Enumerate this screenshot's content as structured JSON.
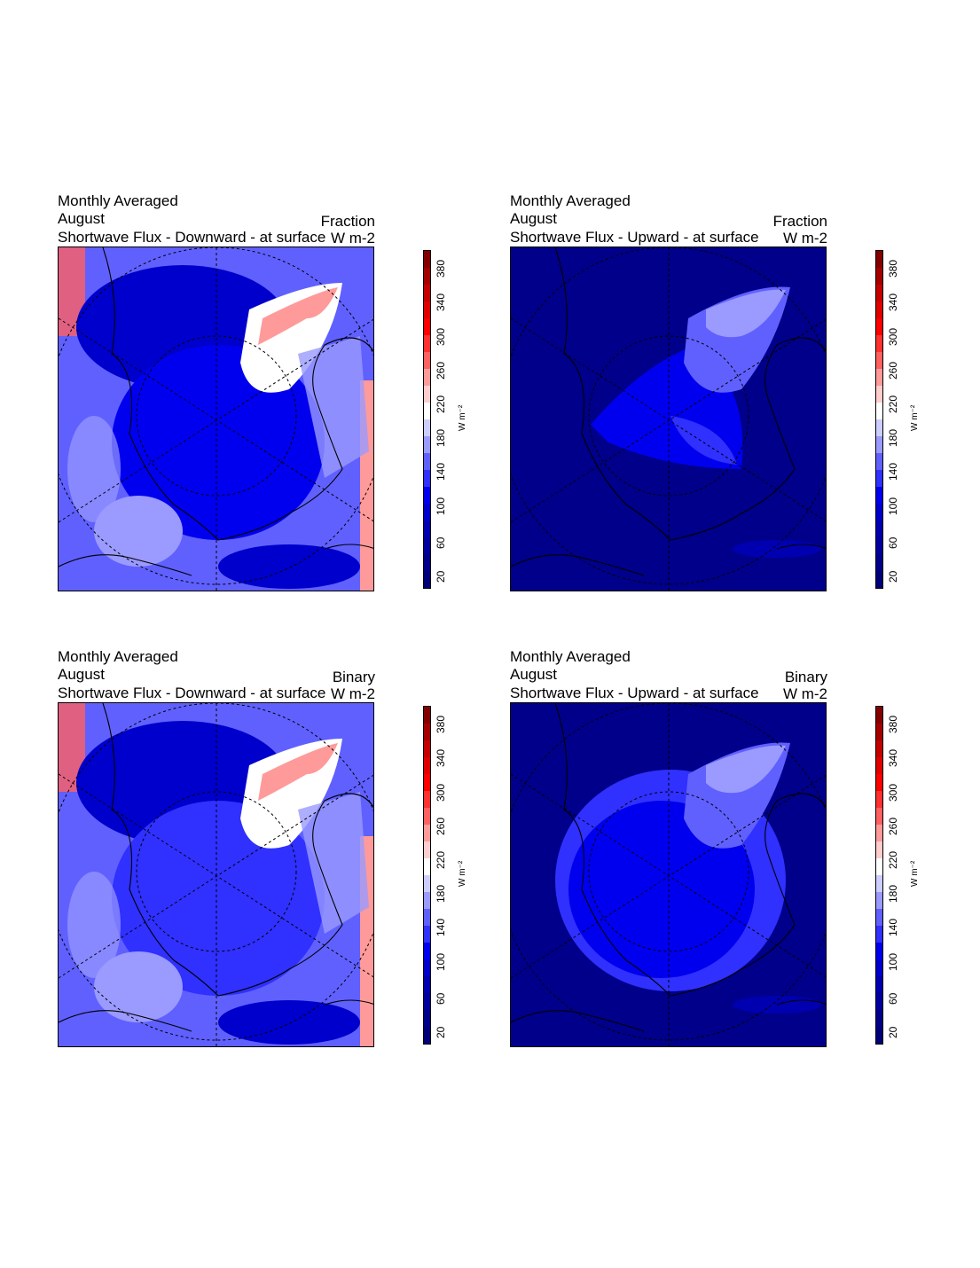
{
  "panels": [
    {
      "line1": "Monthly Averaged",
      "line2": "August",
      "line3": "Shortwave Flux - Downward - at surface",
      "method": "Fraction",
      "units": "W m-2",
      "variable": "downward"
    },
    {
      "line1": "Monthly Averaged",
      "line2": "August",
      "line3": "Shortwave Flux - Upward - at surface",
      "method": "Fraction",
      "units": "W m-2",
      "variable": "upward"
    },
    {
      "line1": "Monthly Averaged",
      "line2": "August",
      "line3": "Shortwave Flux - Downward - at surface",
      "method": "Binary",
      "units": "W m-2",
      "variable": "downward"
    },
    {
      "line1": "Monthly Averaged",
      "line2": "August",
      "line3": "Shortwave Flux - Upward - at surface",
      "method": "Binary",
      "units": "W m-2",
      "variable": "upward"
    }
  ],
  "colorbar": {
    "unit": "W m⁻²",
    "range": [
      0,
      400
    ],
    "interval": 20,
    "tick_labels": [
      "20",
      "60",
      "100",
      "140",
      "180",
      "220",
      "260",
      "300",
      "340",
      "380"
    ],
    "colors": [
      "#000078",
      "#00008a",
      "#00009c",
      "#0000b0",
      "#0000cc",
      "#0000ee",
      "#3030ff",
      "#6060ff",
      "#9a9aff",
      "#cdcdff",
      "#ffffff",
      "#ffcdcd",
      "#ff9a9a",
      "#ff6060",
      "#ff3030",
      "#ff0000",
      "#e00000",
      "#c40000",
      "#a40000",
      "#840000"
    ]
  }
}
